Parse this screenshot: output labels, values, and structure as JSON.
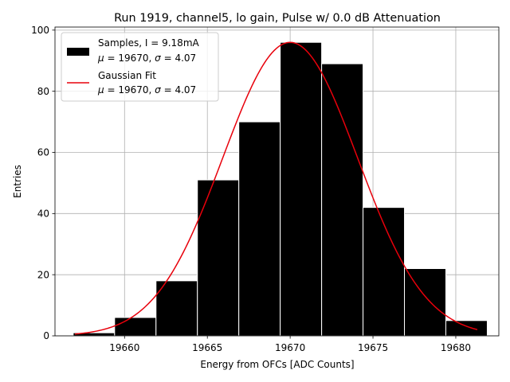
{
  "chart_data": {
    "type": "bar",
    "title": "Run 1919, channel5, lo gain, Pulse w/ 0.0 dB Attenuation",
    "xlabel": "Energy from OFCs [ADC Counts]",
    "ylabel": "Entries",
    "xlim": [
      19655.8,
      19682.6
    ],
    "ylim": [
      0,
      101
    ],
    "xticks": [
      19660,
      19665,
      19670,
      19675,
      19680
    ],
    "yticks": [
      0,
      20,
      40,
      60,
      80,
      100
    ],
    "grid": true,
    "legend_position": "top-left",
    "histogram": {
      "name": "Samples, I = 9.18mA",
      "bin_edges": [
        19656.9,
        19659.4,
        19661.9,
        19664.4,
        19666.9,
        19669.4,
        19671.9,
        19674.4,
        19676.9,
        19679.4,
        19681.9
      ],
      "counts": [
        1,
        6,
        18,
        51,
        70,
        96,
        89,
        42,
        22,
        5
      ],
      "color": "#000000"
    },
    "fit": {
      "name": "Gaussian Fit",
      "type": "gaussian",
      "amplitude": 96,
      "mu": 19670,
      "sigma": 4.07,
      "x_range": [
        19657,
        19681.3
      ],
      "color": "#e8000b"
    },
    "legend": [
      {
        "label_line1": "Samples, I = 9.18mA",
        "label_line2_mu": "19670",
        "label_line2_sigma": "4.07",
        "kind": "patch"
      },
      {
        "label_line1": "Gaussian Fit",
        "label_line2_mu": "19670",
        "label_line2_sigma": "4.07",
        "kind": "line"
      }
    ],
    "symbols": {
      "mu": "μ",
      "sigma": "σ",
      "eq": " = ",
      "sep": ", "
    }
  }
}
